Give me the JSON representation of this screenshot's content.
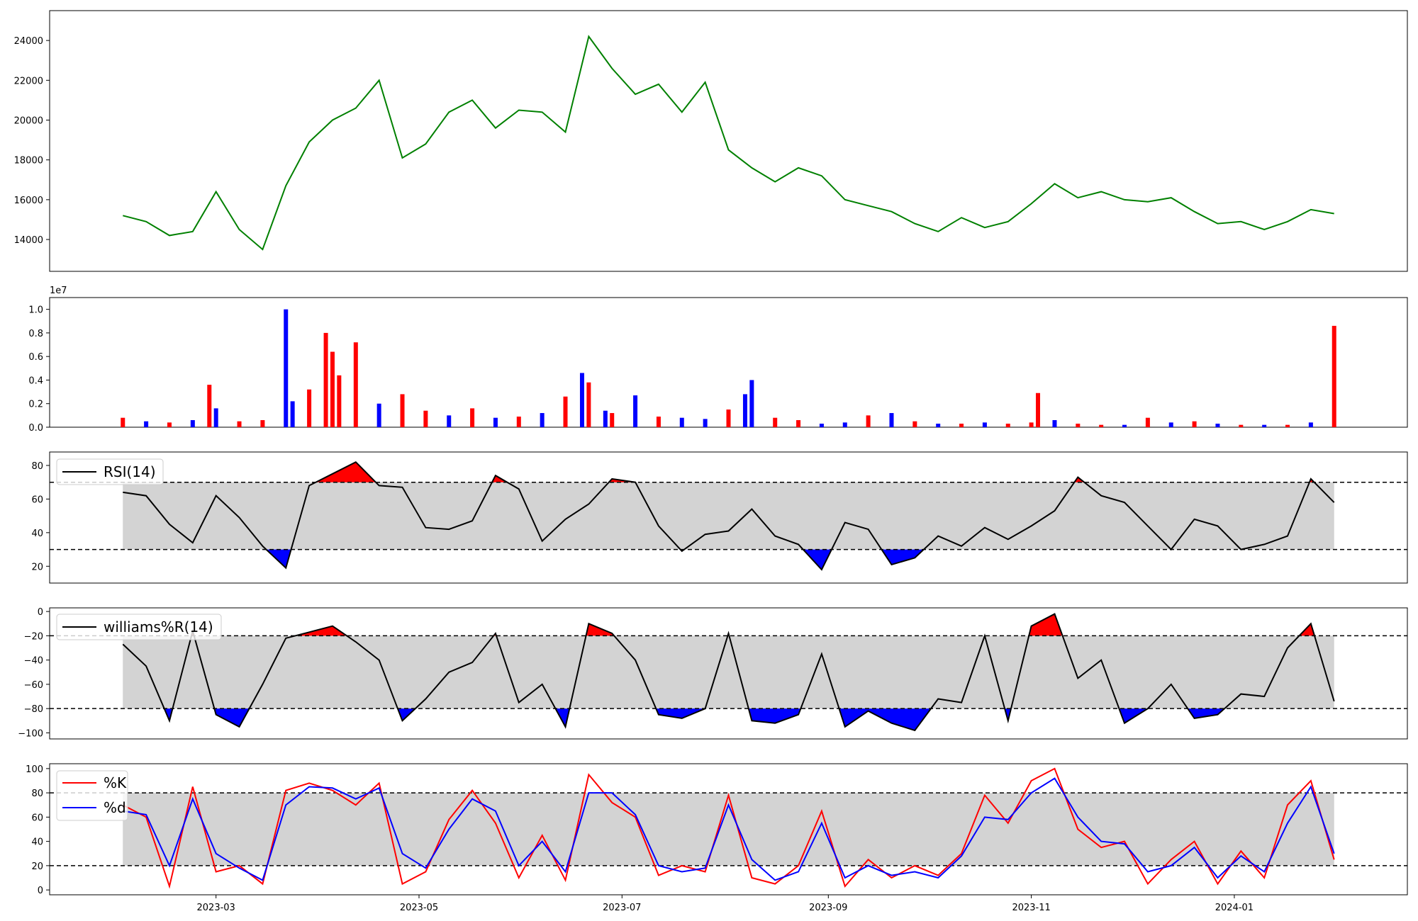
{
  "colors": {
    "price_line": "#008000",
    "volume_up": "#ff0000",
    "volume_down": "#0000ff",
    "volume_flat": "#000000",
    "band_fill": "#d3d3d3",
    "overbought_fill": "#ff0000",
    "oversold_fill": "#0000ff",
    "indicator_line": "#000000",
    "k_line": "#ff0000",
    "d_line": "#0000ff"
  },
  "chart_data": [
    {
      "id": "price",
      "type": "line",
      "x_type": "date",
      "xlim": [
        "2023-01-10",
        "2024-02-22"
      ],
      "ylim": [
        12400,
        25500
      ],
      "yticks": [
        14000,
        16000,
        18000,
        20000,
        22000,
        24000
      ],
      "ytick_labels": [
        "14000",
        "16000",
        "18000",
        "20000",
        "22000",
        "24000"
      ],
      "show_xticks": false,
      "series": [
        {
          "x": [
            "2023-02-01",
            "2023-02-08",
            "2023-02-15",
            "2023-02-22",
            "2023-03-01",
            "2023-03-08",
            "2023-03-15",
            "2023-03-22",
            "2023-03-29",
            "2023-04-05",
            "2023-04-12",
            "2023-04-19",
            "2023-04-26",
            "2023-05-03",
            "2023-05-10",
            "2023-05-17",
            "2023-05-24",
            "2023-05-31",
            "2023-06-07",
            "2023-06-14",
            "2023-06-21",
            "2023-06-28",
            "2023-07-05",
            "2023-07-12",
            "2023-07-19",
            "2023-07-26",
            "2023-08-02",
            "2023-08-09",
            "2023-08-16",
            "2023-08-23",
            "2023-08-30",
            "2023-09-06",
            "2023-09-13",
            "2023-09-20",
            "2023-09-27",
            "2023-10-04",
            "2023-10-11",
            "2023-10-18",
            "2023-10-25",
            "2023-11-01",
            "2023-11-08",
            "2023-11-15",
            "2023-11-22",
            "2023-11-29",
            "2023-12-06",
            "2023-12-13",
            "2023-12-20",
            "2023-12-27",
            "2024-01-03",
            "2024-01-10",
            "2024-01-17",
            "2024-01-24",
            "2024-01-31"
          ],
          "values": [
            15200,
            14900,
            14200,
            14400,
            16400,
            14500,
            13500,
            16700,
            18900,
            20000,
            20600,
            22000,
            18100,
            18800,
            20400,
            21000,
            19600,
            20500,
            20400,
            19400,
            24200,
            22600,
            21300,
            21800,
            20400,
            21900,
            18500,
            17600,
            16900,
            17600,
            17200,
            16000,
            15700,
            15400,
            14800,
            14400,
            15100,
            14600,
            14900,
            15800,
            16800,
            16100,
            16400,
            16000,
            15900,
            16100,
            15400,
            14800,
            14900,
            14500,
            14900,
            15500,
            15300
          ]
        }
      ]
    },
    {
      "id": "volume",
      "type": "bar",
      "x_type": "date",
      "xlim": [
        "2023-01-10",
        "2024-02-22"
      ],
      "ylim": [
        0,
        1.1
      ],
      "yticks": [
        0,
        0.2,
        0.4,
        0.6,
        0.8,
        1.0
      ],
      "ytick_labels": [
        "0.0",
        "0.2",
        "0.4",
        "0.6",
        "0.8",
        "1.0"
      ],
      "offset_label": "1e7",
      "show_xticks": false,
      "x": [
        "2023-02-01",
        "2023-02-08",
        "2023-02-15",
        "2023-02-22",
        "2023-02-27",
        "2023-03-01",
        "2023-03-08",
        "2023-03-15",
        "2023-03-22",
        "2023-03-24",
        "2023-03-29",
        "2023-04-03",
        "2023-04-05",
        "2023-04-07",
        "2023-04-12",
        "2023-04-19",
        "2023-04-26",
        "2023-05-03",
        "2023-05-10",
        "2023-05-17",
        "2023-05-24",
        "2023-05-31",
        "2023-06-07",
        "2023-06-14",
        "2023-06-19",
        "2023-06-21",
        "2023-06-26",
        "2023-06-28",
        "2023-07-05",
        "2023-07-12",
        "2023-07-19",
        "2023-07-26",
        "2023-08-02",
        "2023-08-07",
        "2023-08-09",
        "2023-08-16",
        "2023-08-23",
        "2023-08-30",
        "2023-09-06",
        "2023-09-13",
        "2023-09-20",
        "2023-09-27",
        "2023-10-04",
        "2023-10-11",
        "2023-10-18",
        "2023-10-25",
        "2023-11-01",
        "2023-11-03",
        "2023-11-08",
        "2023-11-15",
        "2023-11-22",
        "2023-11-29",
        "2023-12-06",
        "2023-12-13",
        "2023-12-20",
        "2023-12-27",
        "2024-01-03",
        "2024-01-10",
        "2024-01-17",
        "2024-01-24",
        "2024-01-31"
      ],
      "values": [
        0.08,
        0.05,
        0.04,
        0.06,
        0.36,
        0.16,
        0.05,
        0.06,
        1.0,
        0.22,
        0.32,
        0.8,
        0.64,
        0.44,
        0.72,
        0.2,
        0.28,
        0.14,
        0.1,
        0.16,
        0.08,
        0.09,
        0.12,
        0.26,
        0.46,
        0.38,
        0.14,
        0.12,
        0.27,
        0.09,
        0.08,
        0.07,
        0.15,
        0.28,
        0.4,
        0.08,
        0.06,
        0.03,
        0.04,
        0.1,
        0.12,
        0.05,
        0.03,
        0.03,
        0.04,
        0.03,
        0.04,
        0.29,
        0.06,
        0.03,
        0.02,
        0.02,
        0.08,
        0.04,
        0.05,
        0.03,
        0.02,
        0.02,
        0.02,
        0.04,
        0.86
      ],
      "directions": [
        "up",
        "down",
        "up",
        "down",
        "up",
        "down",
        "up",
        "up",
        "down",
        "down",
        "up",
        "up",
        "up",
        "up",
        "up",
        "down",
        "up",
        "up",
        "down",
        "up",
        "down",
        "up",
        "down",
        "up",
        "down",
        "up",
        "down",
        "up",
        "down",
        "up",
        "down",
        "down",
        "up",
        "down",
        "down",
        "up",
        "up",
        "down",
        "down",
        "up",
        "down",
        "up",
        "down",
        "up",
        "down",
        "up",
        "up",
        "up",
        "down",
        "up",
        "up",
        "down",
        "up",
        "down",
        "up",
        "down",
        "up",
        "down",
        "up",
        "down",
        "up"
      ]
    },
    {
      "id": "rsi",
      "type": "line",
      "x_type": "date",
      "xlim": [
        "2023-01-10",
        "2024-02-22"
      ],
      "ylim": [
        10,
        88
      ],
      "yticks": [
        20,
        40,
        60,
        80
      ],
      "ytick_labels": [
        "20",
        "40",
        "60",
        "80"
      ],
      "upper": 70,
      "lower": 30,
      "show_xticks": false,
      "series": [
        {
          "name": "RSI(14)",
          "x": [
            "2023-02-01",
            "2023-02-08",
            "2023-02-15",
            "2023-02-22",
            "2023-03-01",
            "2023-03-08",
            "2023-03-15",
            "2023-03-22",
            "2023-03-29",
            "2023-04-05",
            "2023-04-12",
            "2023-04-19",
            "2023-04-26",
            "2023-05-03",
            "2023-05-10",
            "2023-05-17",
            "2023-05-24",
            "2023-05-31",
            "2023-06-07",
            "2023-06-14",
            "2023-06-21",
            "2023-06-28",
            "2023-07-05",
            "2023-07-12",
            "2023-07-19",
            "2023-07-26",
            "2023-08-02",
            "2023-08-09",
            "2023-08-16",
            "2023-08-23",
            "2023-08-30",
            "2023-09-06",
            "2023-09-13",
            "2023-09-20",
            "2023-09-27",
            "2023-10-04",
            "2023-10-11",
            "2023-10-18",
            "2023-10-25",
            "2023-11-01",
            "2023-11-08",
            "2023-11-15",
            "2023-11-22",
            "2023-11-29",
            "2023-12-06",
            "2023-12-13",
            "2023-12-20",
            "2023-12-27",
            "2024-01-03",
            "2024-01-10",
            "2024-01-17",
            "2024-01-24",
            "2024-01-31"
          ],
          "values": [
            64,
            62,
            45,
            34,
            62,
            49,
            32,
            19,
            68,
            75,
            82,
            68,
            67,
            43,
            42,
            47,
            74,
            66,
            35,
            48,
            57,
            72,
            70,
            44,
            29,
            39,
            41,
            54,
            38,
            33,
            18,
            46,
            42,
            21,
            25,
            38,
            32,
            43,
            36,
            44,
            53,
            73,
            62,
            58,
            44,
            30,
            48,
            44,
            30,
            33,
            38,
            72,
            58
          ]
        }
      ]
    },
    {
      "id": "williams",
      "type": "line",
      "x_type": "date",
      "xlim": [
        "2023-01-10",
        "2024-02-22"
      ],
      "ylim": [
        -105,
        3
      ],
      "yticks": [
        -100,
        -80,
        -60,
        -40,
        -20,
        0
      ],
      "ytick_labels": [
        "−100",
        "−80",
        "−60",
        "−40",
        "−20",
        "0"
      ],
      "upper": -20,
      "lower": -80,
      "show_xticks": false,
      "series": [
        {
          "name": "williams%R(14)",
          "x": [
            "2023-02-01",
            "2023-02-08",
            "2023-02-15",
            "2023-02-22",
            "2023-03-01",
            "2023-03-08",
            "2023-03-15",
            "2023-03-22",
            "2023-03-29",
            "2023-04-05",
            "2023-04-12",
            "2023-04-19",
            "2023-04-26",
            "2023-05-03",
            "2023-05-10",
            "2023-05-17",
            "2023-05-24",
            "2023-05-31",
            "2023-06-07",
            "2023-06-14",
            "2023-06-21",
            "2023-06-28",
            "2023-07-05",
            "2023-07-12",
            "2023-07-19",
            "2023-07-26",
            "2023-08-02",
            "2023-08-09",
            "2023-08-16",
            "2023-08-23",
            "2023-08-30",
            "2023-09-06",
            "2023-09-13",
            "2023-09-20",
            "2023-09-27",
            "2023-10-04",
            "2023-10-11",
            "2023-10-18",
            "2023-10-25",
            "2023-11-01",
            "2023-11-08",
            "2023-11-15",
            "2023-11-22",
            "2023-11-29",
            "2023-12-06",
            "2023-12-13",
            "2023-12-20",
            "2023-12-27",
            "2024-01-03",
            "2024-01-10",
            "2024-01-17",
            "2024-01-24",
            "2024-01-31"
          ],
          "values": [
            -27,
            -45,
            -90,
            -16,
            -85,
            -95,
            -60,
            -22,
            -17,
            -12,
            -25,
            -40,
            -90,
            -72,
            -50,
            -42,
            -18,
            -75,
            -60,
            -95,
            -10,
            -18,
            -40,
            -85,
            -88,
            -80,
            -18,
            -90,
            -92,
            -85,
            -35,
            -95,
            -82,
            -92,
            -98,
            -72,
            -75,
            -20,
            -90,
            -12,
            -2,
            -55,
            -40,
            -92,
            -80,
            -60,
            -88,
            -85,
            -68,
            -70,
            -30,
            -10,
            -74
          ]
        }
      ]
    },
    {
      "id": "stochastic",
      "type": "line",
      "x_type": "date",
      "xlim": [
        "2023-01-10",
        "2024-02-22"
      ],
      "ylim": [
        -4,
        104
      ],
      "yticks": [
        0,
        20,
        40,
        60,
        80,
        100
      ],
      "ytick_labels": [
        "0",
        "20",
        "40",
        "60",
        "80",
        "100"
      ],
      "upper": 80,
      "lower": 20,
      "show_xticks": true,
      "xticks": [
        "2023-03-01",
        "2023-05-01",
        "2023-07-01",
        "2023-09-01",
        "2023-11-01",
        "2024-01-01"
      ],
      "xtick_labels": [
        "2023-03",
        "2023-05",
        "2023-07",
        "2023-09",
        "2023-11",
        "2024-01"
      ],
      "series": [
        {
          "name": "%K",
          "x": [
            "2023-02-01",
            "2023-02-08",
            "2023-02-15",
            "2023-02-22",
            "2023-03-01",
            "2023-03-08",
            "2023-03-15",
            "2023-03-22",
            "2023-03-29",
            "2023-04-05",
            "2023-04-12",
            "2023-04-19",
            "2023-04-26",
            "2023-05-03",
            "2023-05-10",
            "2023-05-17",
            "2023-05-24",
            "2023-05-31",
            "2023-06-07",
            "2023-06-14",
            "2023-06-21",
            "2023-06-28",
            "2023-07-05",
            "2023-07-12",
            "2023-07-19",
            "2023-07-26",
            "2023-08-02",
            "2023-08-09",
            "2023-08-16",
            "2023-08-23",
            "2023-08-30",
            "2023-09-06",
            "2023-09-13",
            "2023-09-20",
            "2023-09-27",
            "2023-10-04",
            "2023-10-11",
            "2023-10-18",
            "2023-10-25",
            "2023-11-01",
            "2023-11-08",
            "2023-11-15",
            "2023-11-22",
            "2023-11-29",
            "2023-12-06",
            "2023-12-13",
            "2023-12-20",
            "2023-12-27",
            "2024-01-03",
            "2024-01-10",
            "2024-01-17",
            "2024-01-24",
            "2024-01-31"
          ],
          "values": [
            70,
            60,
            3,
            85,
            15,
            20,
            5,
            82,
            88,
            82,
            70,
            88,
            5,
            15,
            58,
            82,
            55,
            10,
            45,
            8,
            95,
            72,
            60,
            12,
            20,
            15,
            78,
            10,
            5,
            20,
            65,
            3,
            25,
            10,
            20,
            12,
            30,
            78,
            55,
            90,
            100,
            50,
            35,
            40,
            5,
            25,
            40,
            5,
            32,
            10,
            70,
            90,
            25
          ]
        },
        {
          "name": "%d",
          "x": [
            "2023-02-01",
            "2023-02-08",
            "2023-02-15",
            "2023-02-22",
            "2023-03-01",
            "2023-03-08",
            "2023-03-15",
            "2023-03-22",
            "2023-03-29",
            "2023-04-05",
            "2023-04-12",
            "2023-04-19",
            "2023-04-26",
            "2023-05-03",
            "2023-05-10",
            "2023-05-17",
            "2023-05-24",
            "2023-05-31",
            "2023-06-07",
            "2023-06-14",
            "2023-06-21",
            "2023-06-28",
            "2023-07-05",
            "2023-07-12",
            "2023-07-19",
            "2023-07-26",
            "2023-08-02",
            "2023-08-09",
            "2023-08-16",
            "2023-08-23",
            "2023-08-30",
            "2023-09-06",
            "2023-09-13",
            "2023-09-20",
            "2023-09-27",
            "2023-10-04",
            "2023-10-11",
            "2023-10-18",
            "2023-10-25",
            "2023-11-01",
            "2023-11-08",
            "2023-11-15",
            "2023-11-22",
            "2023-11-29",
            "2023-12-06",
            "2023-12-13",
            "2023-12-20",
            "2023-12-27",
            "2024-01-03",
            "2024-01-10",
            "2024-01-17",
            "2024-01-24",
            "2024-01-31"
          ],
          "values": [
            65,
            62,
            20,
            75,
            30,
            18,
            8,
            70,
            85,
            84,
            75,
            84,
            30,
            18,
            50,
            75,
            65,
            20,
            40,
            15,
            80,
            80,
            62,
            20,
            15,
            18,
            70,
            25,
            8,
            15,
            55,
            10,
            20,
            12,
            15,
            10,
            28,
            60,
            58,
            80,
            92,
            60,
            40,
            38,
            15,
            20,
            35,
            10,
            28,
            15,
            55,
            85,
            30
          ]
        }
      ]
    }
  ]
}
